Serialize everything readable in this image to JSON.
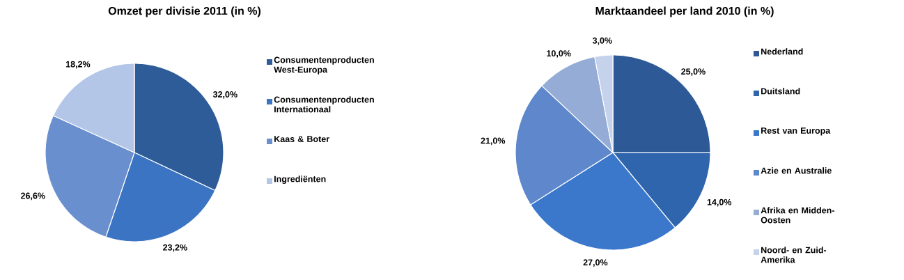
{
  "chart_data": [
    {
      "type": "pie",
      "title": "Omzet per divisie 2011 (in %)",
      "categories": [
        "Consumentenproducten West-Europa",
        "Consumentenproducten Internationaal",
        "Kaas & Boter",
        "Ingrediënten"
      ],
      "values": [
        32.0,
        23.2,
        26.6,
        18.2
      ],
      "colors": [
        "#2e5c99",
        "#3a74c2",
        "#6a8fcf",
        "#b3c6e7"
      ],
      "value_labels": [
        "32,0%",
        "23,2%",
        "26,6%",
        "18,2%"
      ],
      "legend": "right"
    },
    {
      "type": "pie",
      "title": "Marktaandeel per land 2010 (in %)",
      "categories": [
        "Nederland",
        "Duitsland",
        "Rest van Europa",
        "Azie en Australie",
        "Afrika en Midden-Oosten",
        "Noord- en Zuid-Amerika"
      ],
      "values": [
        25.0,
        14.0,
        27.0,
        21.0,
        10.0,
        3.0
      ],
      "colors": [
        "#2d5a96",
        "#2f65ad",
        "#3b78cc",
        "#5f88cc",
        "#94acd6",
        "#c4d2ec"
      ],
      "value_labels": [
        "25,0%",
        "14,0%",
        "27,0%",
        "21,0%",
        "10,0%",
        "3,0%"
      ],
      "legend": "right"
    }
  ]
}
